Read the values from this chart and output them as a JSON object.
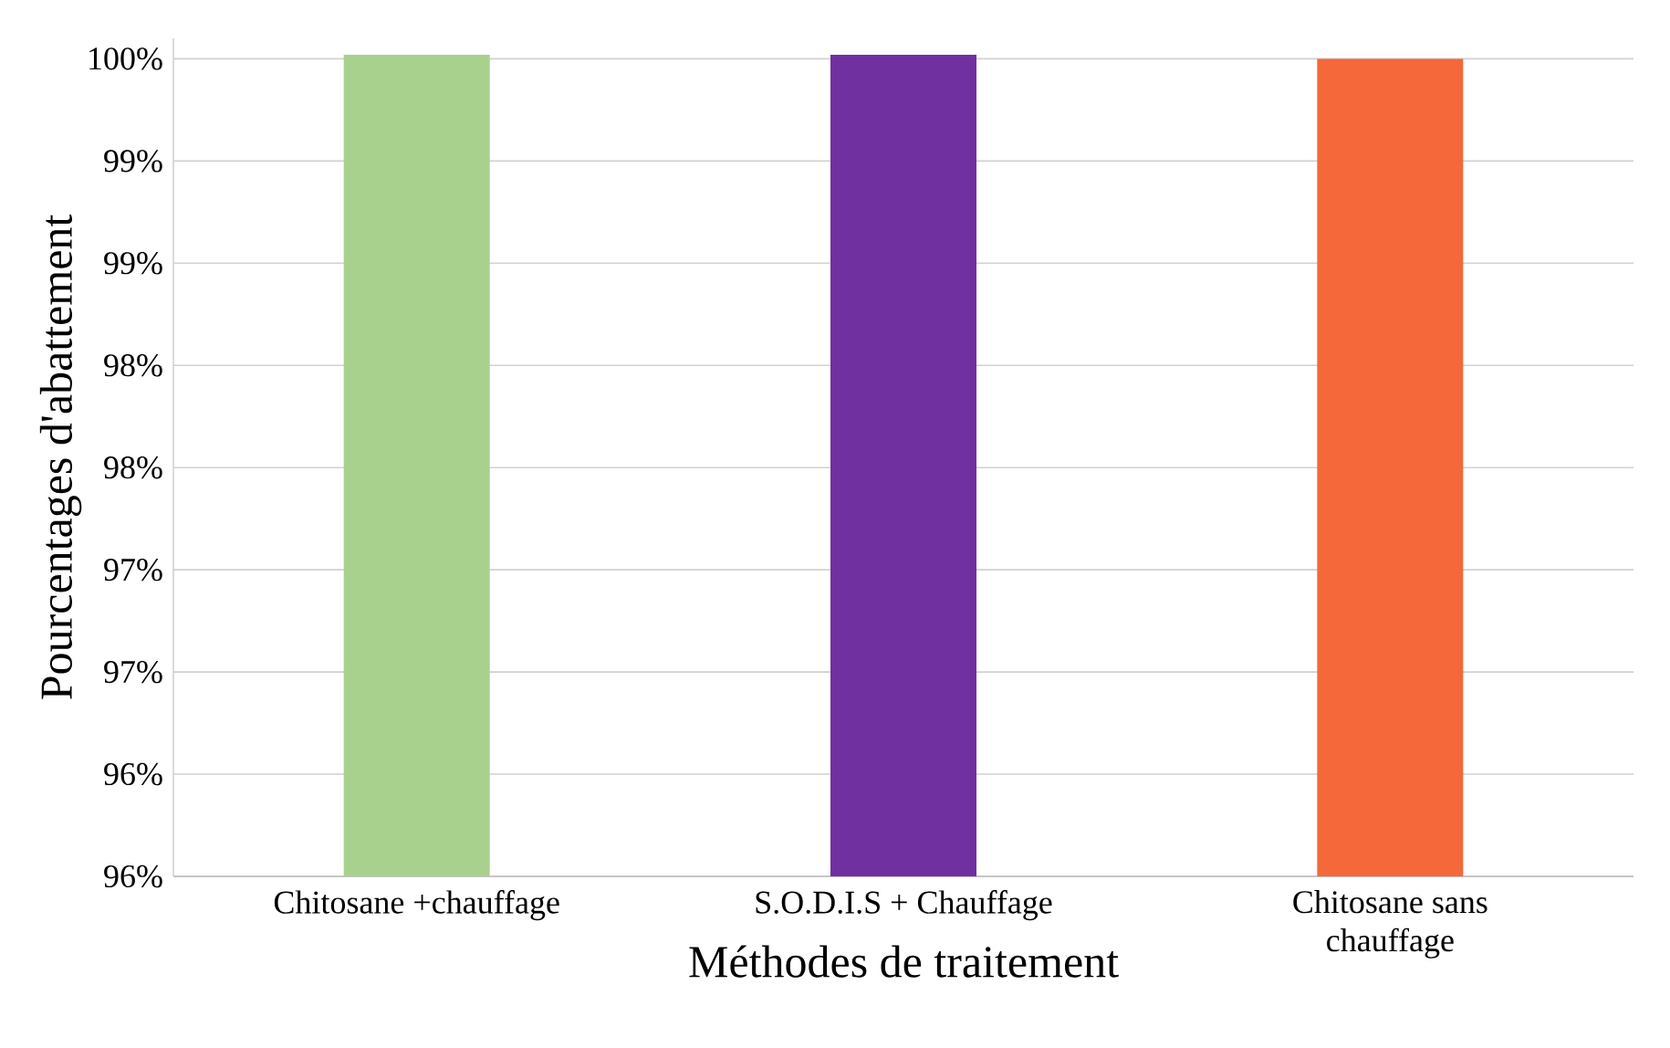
{
  "chart_data": {
    "type": "bar",
    "xlabel": "Méthodes de traitement",
    "ylabel": "Pourcentages  d'abattement",
    "categories": [
      "Chitosane +chauffage",
      "S.O.D.I.S + Chauffage",
      "Chitosane sans chauffage"
    ],
    "values": [
      99.52,
      99.52,
      99.5
    ],
    "colors": [
      "#a9d18e",
      "#7030a0",
      "#f4683a"
    ],
    "ylim": [
      95.5,
      99.6
    ],
    "yticks": [
      {
        "value": 95.5,
        "label": "96%"
      },
      {
        "value": 96.0,
        "label": "96%"
      },
      {
        "value": 96.5,
        "label": "97%"
      },
      {
        "value": 97.0,
        "label": "97%"
      },
      {
        "value": 97.5,
        "label": "98%"
      },
      {
        "value": 98.0,
        "label": "98%"
      },
      {
        "value": 98.5,
        "label": "99%"
      },
      {
        "value": 99.0,
        "label": "99%"
      },
      {
        "value": 99.5,
        "label": "100%"
      }
    ],
    "grid": "y"
  }
}
